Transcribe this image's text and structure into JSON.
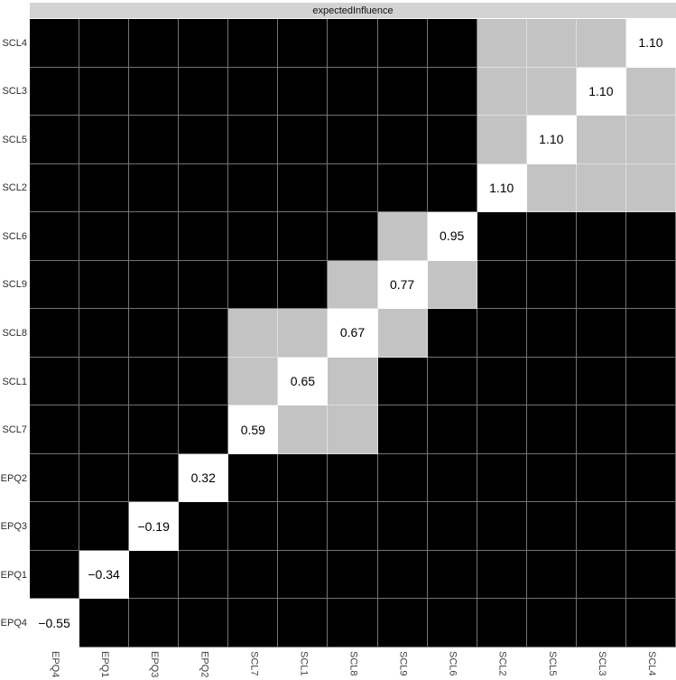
{
  "title": "expectedInfluence",
  "colors": {
    "black_cell": "#000000",
    "gray_cell": "#c3c3c3",
    "white_cell": "#ffffff",
    "strip_background": "#d3d3d3",
    "grid_line": "rgba(255,255,255,0.45)"
  },
  "chart_data": {
    "type": "heatmap",
    "title": "expectedInfluence",
    "legend_position": "none",
    "grid": "on",
    "columns_left_to_right": [
      "EPQ4",
      "EPQ1",
      "EPQ3",
      "EPQ2",
      "SCL7",
      "SCL1",
      "SCL8",
      "SCL9",
      "SCL6",
      "SCL2",
      "SCL5",
      "SCL3",
      "SCL4"
    ],
    "rows_top_to_bottom": [
      "SCL4",
      "SCL3",
      "SCL5",
      "SCL2",
      "SCL6",
      "SCL9",
      "SCL8",
      "SCL1",
      "SCL7",
      "EPQ2",
      "EPQ3",
      "EPQ1",
      "EPQ4"
    ],
    "cell_color_meaning": {
      "white": "diagonal cell showing expected influence value",
      "gray": "non-significant difference pair",
      "black": "significant difference pair"
    },
    "diagonal_values": {
      "EPQ4": "−0.55",
      "EPQ1": "−0.34",
      "EPQ3": "−0.19",
      "EPQ2": "0.32",
      "SCL7": "0.59",
      "SCL1": "0.65",
      "SCL8": "0.67",
      "SCL9": "0.77",
      "SCL6": "0.95",
      "SCL2": "1.10",
      "SCL5": "1.10",
      "SCL3": "1.10",
      "SCL4": "1.10"
    },
    "rows": [
      {
        "label": "SCL4",
        "diag_col": 12,
        "value": "1.10",
        "gray_cols": [
          9,
          10,
          11
        ]
      },
      {
        "label": "SCL3",
        "diag_col": 11,
        "value": "1.10",
        "gray_cols": [
          9,
          10,
          12
        ]
      },
      {
        "label": "SCL5",
        "diag_col": 10,
        "value": "1.10",
        "gray_cols": [
          9,
          11,
          12
        ]
      },
      {
        "label": "SCL2",
        "diag_col": 9,
        "value": "1.10",
        "gray_cols": [
          10,
          11,
          12
        ]
      },
      {
        "label": "SCL6",
        "diag_col": 8,
        "value": "0.95",
        "gray_cols": [
          7
        ]
      },
      {
        "label": "SCL9",
        "diag_col": 7,
        "value": "0.77",
        "gray_cols": [
          6,
          8
        ]
      },
      {
        "label": "SCL8",
        "diag_col": 6,
        "value": "0.67",
        "gray_cols": [
          4,
          5,
          7
        ]
      },
      {
        "label": "SCL1",
        "diag_col": 5,
        "value": "0.65",
        "gray_cols": [
          4,
          6
        ]
      },
      {
        "label": "SCL7",
        "diag_col": 4,
        "value": "0.59",
        "gray_cols": [
          5,
          6
        ]
      },
      {
        "label": "EPQ2",
        "diag_col": 3,
        "value": "0.32",
        "gray_cols": []
      },
      {
        "label": "EPQ3",
        "diag_col": 2,
        "value": "−0.19",
        "gray_cols": []
      },
      {
        "label": "EPQ1",
        "diag_col": 1,
        "value": "−0.34",
        "gray_cols": []
      },
      {
        "label": "EPQ4",
        "diag_col": 0,
        "value": "−0.55",
        "gray_cols": []
      }
    ]
  }
}
